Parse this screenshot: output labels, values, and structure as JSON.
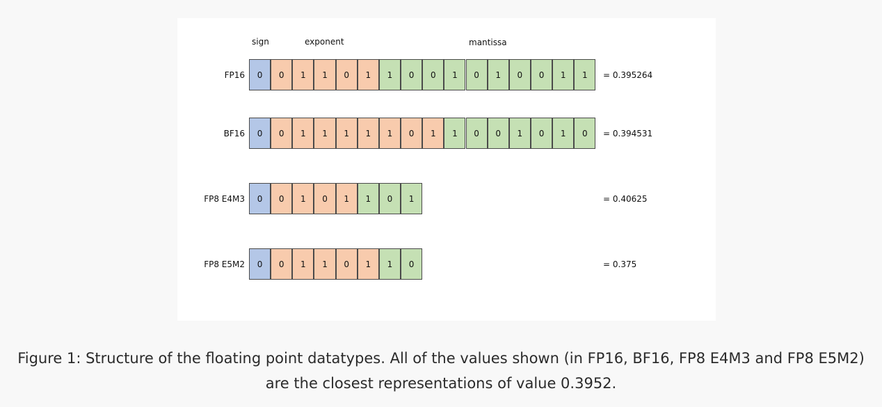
{
  "headers": {
    "sign": "sign",
    "exponent": "exponent",
    "mantissa": "mantissa"
  },
  "rows": [
    {
      "label": "FP16",
      "value": "= 0.395264",
      "bits": [
        {
          "v": "0",
          "t": "sign"
        },
        {
          "v": "0",
          "t": "exponent"
        },
        {
          "v": "1",
          "t": "exponent"
        },
        {
          "v": "1",
          "t": "exponent"
        },
        {
          "v": "0",
          "t": "exponent"
        },
        {
          "v": "1",
          "t": "exponent"
        },
        {
          "v": "1",
          "t": "mantissa"
        },
        {
          "v": "0",
          "t": "mantissa"
        },
        {
          "v": "0",
          "t": "mantissa"
        },
        {
          "v": "1",
          "t": "mantissa"
        },
        {
          "v": "0",
          "t": "mantissa"
        },
        {
          "v": "1",
          "t": "mantissa"
        },
        {
          "v": "0",
          "t": "mantissa"
        },
        {
          "v": "0",
          "t": "mantissa"
        },
        {
          "v": "1",
          "t": "mantissa"
        },
        {
          "v": "1",
          "t": "mantissa"
        }
      ]
    },
    {
      "label": "BF16",
      "value": "= 0.394531",
      "bits": [
        {
          "v": "0",
          "t": "sign"
        },
        {
          "v": "0",
          "t": "exponent"
        },
        {
          "v": "1",
          "t": "exponent"
        },
        {
          "v": "1",
          "t": "exponent"
        },
        {
          "v": "1",
          "t": "exponent"
        },
        {
          "v": "1",
          "t": "exponent"
        },
        {
          "v": "1",
          "t": "exponent"
        },
        {
          "v": "0",
          "t": "exponent"
        },
        {
          "v": "1",
          "t": "exponent"
        },
        {
          "v": "1",
          "t": "mantissa"
        },
        {
          "v": "0",
          "t": "mantissa"
        },
        {
          "v": "0",
          "t": "mantissa"
        },
        {
          "v": "1",
          "t": "mantissa"
        },
        {
          "v": "0",
          "t": "mantissa"
        },
        {
          "v": "1",
          "t": "mantissa"
        },
        {
          "v": "0",
          "t": "mantissa"
        }
      ]
    },
    {
      "label": "FP8 E4M3",
      "value": "= 0.40625",
      "bits": [
        {
          "v": "0",
          "t": "sign"
        },
        {
          "v": "0",
          "t": "exponent"
        },
        {
          "v": "1",
          "t": "exponent"
        },
        {
          "v": "0",
          "t": "exponent"
        },
        {
          "v": "1",
          "t": "exponent"
        },
        {
          "v": "1",
          "t": "mantissa"
        },
        {
          "v": "0",
          "t": "mantissa"
        },
        {
          "v": "1",
          "t": "mantissa"
        }
      ]
    },
    {
      "label": "FP8 E5M2",
      "value": "= 0.375",
      "bits": [
        {
          "v": "0",
          "t": "sign"
        },
        {
          "v": "0",
          "t": "exponent"
        },
        {
          "v": "1",
          "t": "exponent"
        },
        {
          "v": "1",
          "t": "exponent"
        },
        {
          "v": "0",
          "t": "exponent"
        },
        {
          "v": "1",
          "t": "exponent"
        },
        {
          "v": "1",
          "t": "mantissa"
        },
        {
          "v": "0",
          "t": "mantissa"
        }
      ]
    }
  ],
  "colors": {
    "sign": "#b4c7e7",
    "exponent": "#f8cbad",
    "mantissa": "#c5e0b4"
  },
  "caption": "Figure 1: Structure of the floating point datatypes. All of the values shown (in FP16, BF16, FP8 E4M3 and FP8 E5M2) are the closest representations of value 0.3952."
}
